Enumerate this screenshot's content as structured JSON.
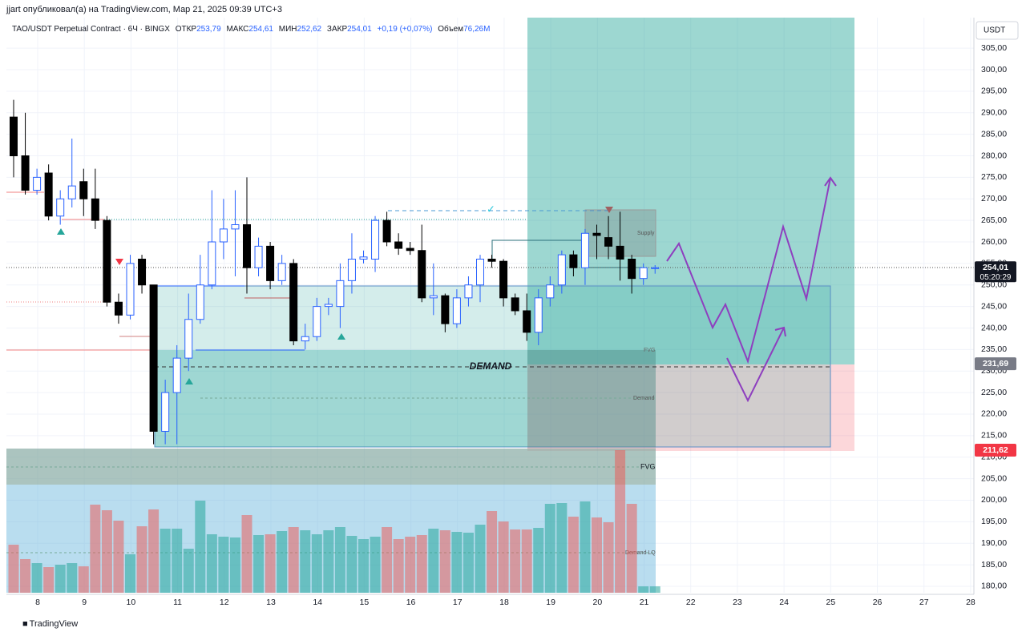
{
  "header": "jjart опубликовал(а) на TradingView.com, Мар 21, 2025 09:39 UTC+3",
  "footer": "TradingView",
  "chart_data": {
    "type": "candlestick",
    "symbol": "TAO/USDT Perpetual Contract · 6Ч · BINGX",
    "ohlc_legend": [
      {
        "label": "ОТКР",
        "value": "253,79"
      },
      {
        "label": "МАКС",
        "value": "254,61"
      },
      {
        "label": "МИН",
        "value": "252,62"
      },
      {
        "label": "ЗАКР",
        "value": "254,01"
      }
    ],
    "change": "+0,19 (+0,07%)",
    "volume_label": "Объем",
    "volume_value": "76,26M",
    "currency": "USDT",
    "up_color": "#2962ff",
    "down_color": "#000000",
    "vol_up_color": "rgba(38,166,154,0.55)",
    "vol_down_color": "rgba(239,83,80,0.5)",
    "open": [
      289,
      280,
      272,
      276,
      266,
      270,
      274,
      270,
      265,
      246,
      243,
      256,
      250,
      216,
      225,
      233,
      242,
      250,
      260,
      263,
      264,
      254,
      259,
      251,
      255,
      237,
      238,
      245,
      245,
      251,
      256,
      256,
      265,
      260,
      258.5,
      258,
      247,
      247.5,
      241,
      247,
      250,
      256,
      255.5,
      247,
      244,
      239,
      247,
      250,
      257,
      254,
      262,
      261,
      259,
      256,
      251.5,
      253.8
    ],
    "high": [
      293,
      290,
      277,
      278,
      272,
      284,
      277,
      277,
      266,
      248,
      257,
      257,
      250,
      228,
      236,
      248,
      257,
      272,
      270,
      272,
      275,
      261,
      260,
      257,
      256,
      241,
      247,
      247,
      255,
      262,
      258,
      266,
      267,
      262,
      260,
      264,
      255,
      248,
      249,
      252,
      257,
      257,
      256,
      248,
      248,
      249,
      252,
      258,
      258,
      263,
      264,
      266,
      267,
      257,
      255,
      254.61
    ],
    "low": [
      275,
      271,
      271,
      265,
      264,
      268,
      266,
      263,
      245,
      241,
      242,
      248,
      213,
      213,
      213,
      230,
      241,
      249,
      256,
      252,
      248,
      252,
      249,
      250,
      236,
      235,
      237,
      243,
      240,
      248,
      255,
      253,
      259,
      257,
      257,
      246,
      243,
      239,
      240,
      245,
      246,
      254,
      245,
      243,
      237,
      236,
      245,
      248,
      252,
      250,
      256,
      256,
      251,
      248,
      250,
      252.62
    ],
    "close": [
      280,
      272,
      275,
      266,
      270,
      273,
      270,
      265,
      246,
      243,
      255,
      250,
      216,
      225,
      233,
      242,
      250,
      260,
      263,
      264,
      254,
      259,
      251,
      255,
      237,
      238,
      245,
      245.5,
      251,
      256,
      256.5,
      265,
      260,
      258.5,
      258,
      247,
      247.5,
      241,
      247,
      250,
      256,
      255.5,
      247,
      244,
      239,
      247,
      250,
      257,
      254,
      262,
      261.5,
      259,
      256,
      251.5,
      254,
      254.01
    ],
    "volume": [
      60,
      42,
      37,
      32,
      35,
      37,
      33,
      110,
      103,
      90,
      48,
      83,
      104,
      80,
      80,
      55,
      115,
      73,
      70,
      69,
      97,
      72,
      73,
      77,
      82,
      78,
      73,
      78,
      82,
      71,
      67,
      70,
      82,
      67,
      70,
      72,
      80,
      78,
      76,
      75,
      85,
      102,
      89,
      79,
      79,
      81,
      111,
      112,
      95,
      114,
      94,
      88,
      178,
      111,
      8,
      8
    ],
    "ylim": [
      178.5,
      312.1
    ],
    "yticks": [
      {
        "value": 180,
        "label": "180,00"
      },
      {
        "value": 185,
        "label": "185,00"
      },
      {
        "value": 190,
        "label": "190,00"
      },
      {
        "value": 195,
        "label": "195,00"
      },
      {
        "value": 200,
        "label": "200,00"
      },
      {
        "value": 205,
        "label": "205,00"
      },
      {
        "value": 210,
        "label": "210,00"
      },
      {
        "value": 215,
        "label": "215,00"
      },
      {
        "value": 220,
        "label": "220,00"
      },
      {
        "value": 225,
        "label": "225,00"
      },
      {
        "value": 230,
        "label": "230,00"
      },
      {
        "value": 235,
        "label": "235,00"
      },
      {
        "value": 240,
        "label": "240,00"
      },
      {
        "value": 245,
        "label": "245,00"
      },
      {
        "value": 250,
        "label": "250,00"
      },
      {
        "value": 255,
        "label": "255,00"
      },
      {
        "value": 260,
        "label": "260,00"
      },
      {
        "value": 265,
        "label": "265,00"
      },
      {
        "value": 270,
        "label": "270,00"
      },
      {
        "value": 275,
        "label": "275,00"
      },
      {
        "value": 280,
        "label": "280,00"
      },
      {
        "value": 285,
        "label": "285,00"
      },
      {
        "value": 290,
        "label": "290,00"
      },
      {
        "value": 295,
        "label": "295,00"
      },
      {
        "value": 300,
        "label": "300,00"
      },
      {
        "value": 305,
        "label": "305,00"
      }
    ],
    "xlim": [
      7.33,
      28.07
    ],
    "xticks": [
      8,
      9,
      10,
      11,
      12,
      13,
      14,
      15,
      16,
      17,
      18,
      19,
      20,
      21,
      22,
      23,
      24,
      25,
      26,
      27,
      28
    ],
    "grid": true,
    "price_labels": [
      {
        "value": 254.01,
        "label": "254,01",
        "sub": "05:20:29",
        "color": "#131722"
      },
      {
        "value": 231.69,
        "label": "231,69",
        "color": "#787b86"
      },
      {
        "value": 211.62,
        "label": "211,62",
        "color": "#f23645"
      }
    ],
    "annotations": [
      "DEMAND",
      "FVG",
      "FVG",
      "Supply",
      "Demand",
      "Demand LQ"
    ]
  }
}
